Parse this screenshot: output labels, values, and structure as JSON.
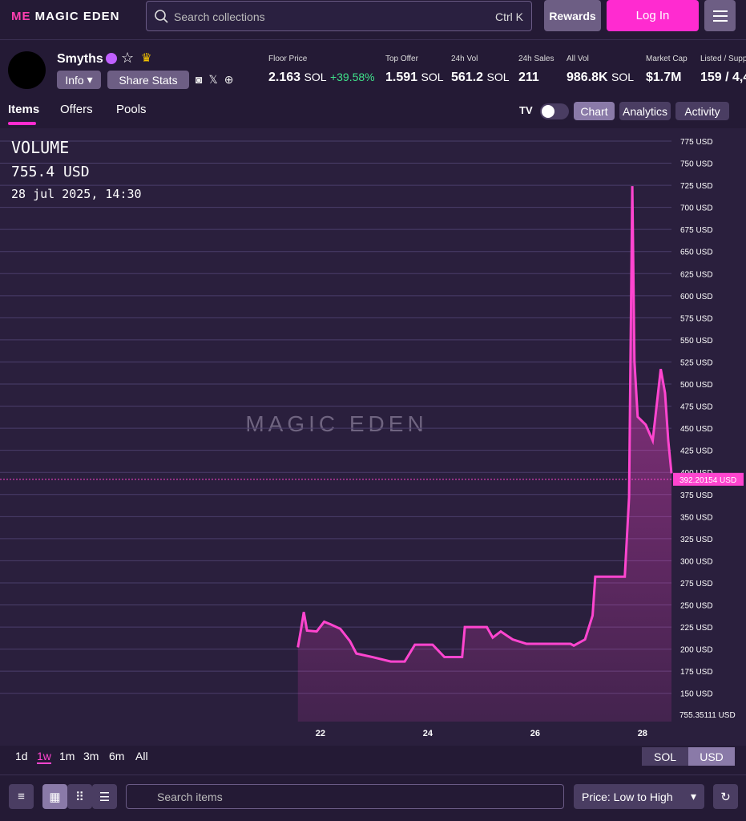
{
  "header": {
    "logo": "MAGIC EDEN",
    "search": "Search collections",
    "shortcut": "Ctrl K",
    "rewards": "Rewards",
    "login": "Log In"
  },
  "collection": {
    "name": "Smyths",
    "info": "Info",
    "share": "Share Stats",
    "stats": [
      {
        "label": "Floor Price",
        "value": "2.163",
        "unit": "SOL",
        "change": "+39.58%"
      },
      {
        "label": "Top Offer",
        "value": "1.591",
        "unit": "SOL"
      },
      {
        "label": "24h Vol",
        "value": "561.2",
        "unit": "SOL"
      },
      {
        "label": "24h Sales",
        "value": "211"
      },
      {
        "label": "All Vol",
        "value": "986.8K",
        "unit": "SOL"
      },
      {
        "label": "Market Cap",
        "value": "$1.7M"
      },
      {
        "label": "Listed / Supp",
        "value": "159 / 4,4"
      }
    ]
  },
  "tabs": [
    "Items",
    "Offers",
    "Pools"
  ],
  "chart_views": [
    "Chart",
    "Analytics",
    "Activity"
  ],
  "chart_legend": {
    "value": "755.4 USD",
    "date": "28 jul 2025, 14:30"
  },
  "watermark": "MAGIC EDEN",
  "chart_data": {
    "type": "line",
    "title": "VOLUME",
    "x": [
      21.58,
      21.64,
      21.69,
      21.75,
      21.93,
      22.07,
      22.19,
      22.37,
      22.55,
      22.67,
      22.97,
      23.31,
      23.57,
      23.76,
      24.09,
      24.31,
      24.64,
      24.69,
      25.1,
      25.21,
      25.36,
      25.58,
      25.84,
      26.66,
      26.72,
      26.93,
      27.07,
      27.12,
      27.67,
      27.75,
      27.81,
      27.85,
      27.91,
      28.06,
      28.19,
      28.34,
      28.42,
      28.48,
      28.54
    ],
    "series": [
      {
        "color": "#ff45cf",
        "values": [
          202,
          223,
          242,
          221,
          220,
          231,
          228,
          223,
          209,
          195,
          191,
          186,
          186,
          205,
          205,
          191,
          191,
          225,
          225,
          213,
          220,
          211,
          206,
          206,
          204,
          211,
          238,
          282,
          282,
          372,
          724,
          526,
          463,
          454,
          436,
          517,
          490,
          436,
          399
        ]
      }
    ],
    "xlim": [
      16.03,
      28.54
    ],
    "ylim": [
      118,
      789.5
    ],
    "xticks": [
      22,
      24,
      26,
      28
    ],
    "yticks": [
      {
        "value": 150,
        "label": "150 USD"
      },
      {
        "value": 175,
        "label": "175 USD"
      },
      {
        "value": 200,
        "label": "200 USD"
      },
      {
        "value": 225,
        "label": "225 USD"
      },
      {
        "value": 250,
        "label": "250 USD"
      },
      {
        "value": 275,
        "label": "275 USD"
      },
      {
        "value": 300,
        "label": "300 USD"
      },
      {
        "value": 325,
        "label": "325 USD"
      },
      {
        "value": 350,
        "label": "350 USD"
      },
      {
        "value": 375,
        "label": "375 USD"
      },
      {
        "value": 400,
        "label": "400 USD"
      },
      {
        "value": 425,
        "label": "425 USD"
      },
      {
        "value": 450,
        "label": "450 USD"
      },
      {
        "value": 475,
        "label": "475 USD"
      },
      {
        "value": 500,
        "label": "500 USD"
      },
      {
        "value": 525,
        "label": "525 USD"
      },
      {
        "value": 550,
        "label": "550 USD"
      },
      {
        "value": 575,
        "label": "575 USD"
      },
      {
        "value": 600,
        "label": "600 USD"
      },
      {
        "value": 625,
        "label": "625 USD"
      },
      {
        "value": 650,
        "label": "650 USD"
      },
      {
        "value": 675,
        "label": "675 USD"
      },
      {
        "value": 700,
        "label": "700 USD"
      },
      {
        "value": 725,
        "label": "725 USD"
      },
      {
        "value": 750,
        "label": "750 USD"
      },
      {
        "value": 775,
        "label": "775 USD"
      }
    ],
    "grid": true,
    "price_line": {
      "value": 392.20154,
      "label": "392.20154 USD"
    },
    "volume_label": "755.35111 USD"
  },
  "ranges": [
    "1d",
    "1w",
    "1m",
    "3m",
    "6m",
    "All"
  ],
  "currencies": [
    "SOL",
    "USD"
  ],
  "toolbar": {
    "search": "Search items",
    "sort": "Price: Low to High"
  }
}
